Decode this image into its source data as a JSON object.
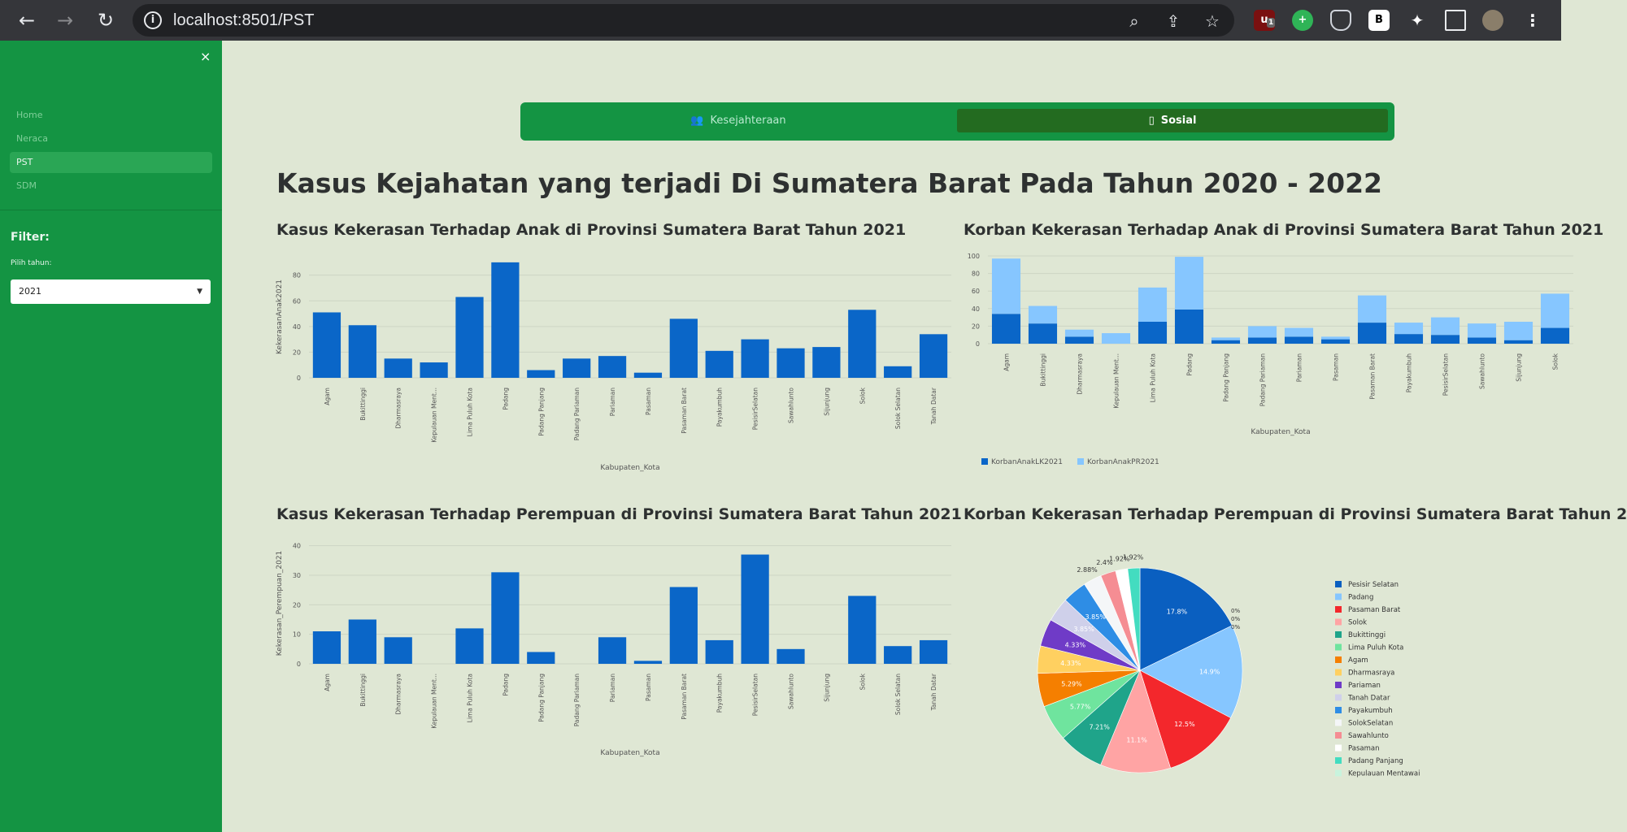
{
  "browser": {
    "url": "localhost:8501/PST",
    "info_icon": "info-icon",
    "ext_badge": "1"
  },
  "sidebar": {
    "close": "×",
    "items": [
      {
        "label": "Home"
      },
      {
        "label": "Neraca"
      },
      {
        "label": "PST"
      },
      {
        "label": "SDM"
      }
    ],
    "filter_title": "Filter:",
    "filter_label": "Pilih tahun:",
    "year_value": "2021"
  },
  "tabs": [
    {
      "label": "Kesejahteraan",
      "icon": "people-icon"
    },
    {
      "label": "Sosial",
      "icon": "phone-icon"
    }
  ],
  "page": {
    "title": "Kasus Kejahatan yang terjadi Di Sumatera Barat Pada Tahun 2020 - 2022"
  },
  "colors": {
    "bar": "#0a66c8",
    "lk": "#0a66c8",
    "pr": "#86c6ff",
    "sidebar": "#149443",
    "background": "#dfe7d4"
  },
  "chart_data": [
    {
      "type": "bar",
      "title": "Kasus Kekerasan Terhadap Anak di Provinsi Sumatera Barat Tahun 2021",
      "xlabel": "Kabupaten_Kota",
      "ylabel": "KekerasanAnak2021",
      "ylim": [
        0,
        95
      ],
      "yticks": [
        0,
        20,
        40,
        60,
        80
      ],
      "categories": [
        "Agam",
        "Bukittinggi",
        "Dharmasraya",
        "Kepulauan Ment...",
        "Lima Puluh Kota",
        "Padang",
        "Padang Panjang",
        "Padang Pariaman",
        "Pariaman",
        "Pasaman",
        "Pasaman Barat",
        "Payakumbuh",
        "PesisirSelatan",
        "Sawahlunto",
        "Sijunjung",
        "Solok",
        "Solok Selatan",
        "Tanah Datar"
      ],
      "values": [
        51,
        41,
        15,
        12,
        63,
        90,
        6,
        15,
        17,
        4,
        46,
        21,
        30,
        23,
        24,
        53,
        9,
        34
      ]
    },
    {
      "type": "bar",
      "stacked": true,
      "title": "Korban Kekerasan Terhadap Anak di Provinsi Sumatera Barat Tahun 2021",
      "xlabel": "Kabupaten_Kota",
      "ylim": [
        0,
        100
      ],
      "yticks": [
        0,
        20,
        40,
        60,
        80,
        100
      ],
      "categories": [
        "Agam",
        "Bukittinggi",
        "Dharmasraya",
        "Kepulauan Ment...",
        "Lima Puluh Kota",
        "Padang",
        "Padang Panjang",
        "Padang Pariaman",
        "Pariaman",
        "Pasaman",
        "Pasaman Barat",
        "Payakumbuh",
        "PesisirSelatan",
        "Sawahlunto",
        "Sijunjung",
        "Solok"
      ],
      "series": [
        {
          "name": "KorbanAnakLK2021",
          "values": [
            34,
            23,
            8,
            0,
            25,
            39,
            4,
            7,
            8,
            5,
            24,
            11,
            10,
            7,
            4,
            18
          ]
        },
        {
          "name": "KorbanAnakPR2021",
          "values": [
            63,
            20,
            8,
            12,
            39,
            60,
            3,
            13,
            10,
            3,
            31,
            13,
            20,
            16,
            21,
            39
          ]
        }
      ],
      "legend": "bottom-left"
    },
    {
      "type": "bar",
      "title": "Kasus Kekerasan Terhadap Perempuan di Provinsi Sumatera Barat Tahun 2021",
      "xlabel": "Kabupaten_Kota",
      "ylabel": "Kekerasan_Perempuan_2021",
      "ylim": [
        0,
        41
      ],
      "yticks": [
        0,
        10,
        20,
        30,
        40
      ],
      "categories": [
        "Agam",
        "Bukittinggi",
        "Dharmasraya",
        "Kepulauan Ment...",
        "Lima Puluh Kota",
        "Padang",
        "Padang Panjang",
        "Padang Pariaman",
        "Pariaman",
        "Pasaman",
        "Pasaman Barat",
        "Payakumbuh",
        "PesisirSelatan",
        "Sawahlunto",
        "Sijunjung",
        "Solok",
        "Solok Selatan",
        "Tanah Datar"
      ],
      "values": [
        11,
        15,
        9,
        0,
        12,
        31,
        4,
        0,
        9,
        1,
        26,
        8,
        37,
        5,
        0,
        23,
        6,
        8
      ]
    },
    {
      "type": "pie",
      "title": "Korban Kekerasan Terhadap Perempuan di Provinsi Sumatera Barat Tahun 2",
      "slices": [
        {
          "label": "Pesisir Selatan",
          "value": 17.8,
          "text": "17.8%",
          "color": "#0a5fc0"
        },
        {
          "label": "Padang",
          "value": 14.9,
          "text": "14.9%",
          "color": "#86c6ff"
        },
        {
          "label": "Pasaman Barat",
          "value": 12.5,
          "text": "12.5%",
          "color": "#f3272c"
        },
        {
          "label": "Solok",
          "value": 11.1,
          "text": "11.1%",
          "color": "#ffa4a4"
        },
        {
          "label": "Bukittinggi",
          "value": 7.21,
          "text": "7.21%",
          "color": "#1fa48a"
        },
        {
          "label": "Lima Puluh Kota",
          "value": 5.77,
          "text": "5.77%",
          "color": "#6fe49e"
        },
        {
          "label": "Agam",
          "value": 5.29,
          "text": "5.29%",
          "color": "#f57f00"
        },
        {
          "label": "Dharmasraya",
          "value": 4.33,
          "text": "4.33%",
          "color": "#ffd060"
        },
        {
          "label": "Pariaman",
          "value": 4.33,
          "text": "4.33%",
          "color": "#6f3bc7"
        },
        {
          "label": "Tanah Datar",
          "value": 3.85,
          "text": "3.85%",
          "color": "#cfd0ea"
        },
        {
          "label": "Payakumbuh",
          "value": 3.85,
          "text": "3.85%",
          "color": "#2e8de5"
        },
        {
          "label": "SolokSelatan",
          "value": 2.88,
          "text": "2.88%",
          "color": "#f4f6f8"
        },
        {
          "label": "Sawahlunto",
          "value": 2.4,
          "text": "2.4%",
          "color": "#f58d93"
        },
        {
          "label": "Pasaman",
          "value": 1.92,
          "text": "1.92%",
          "color": "#ffffff"
        },
        {
          "label": "Padang Panjang",
          "value": 1.92,
          "text": "1.92%",
          "color": "#43dcc0"
        },
        {
          "label": "Kepulauan Mentawai",
          "value": 0,
          "text": "0%",
          "color": "#c8f3dd"
        },
        {
          "label": "",
          "value": 0,
          "text": "0%",
          "color": "#cccccc"
        },
        {
          "label": "",
          "value": 0,
          "text": "0%",
          "color": "#cccccc"
        }
      ],
      "legend": "right"
    }
  ]
}
